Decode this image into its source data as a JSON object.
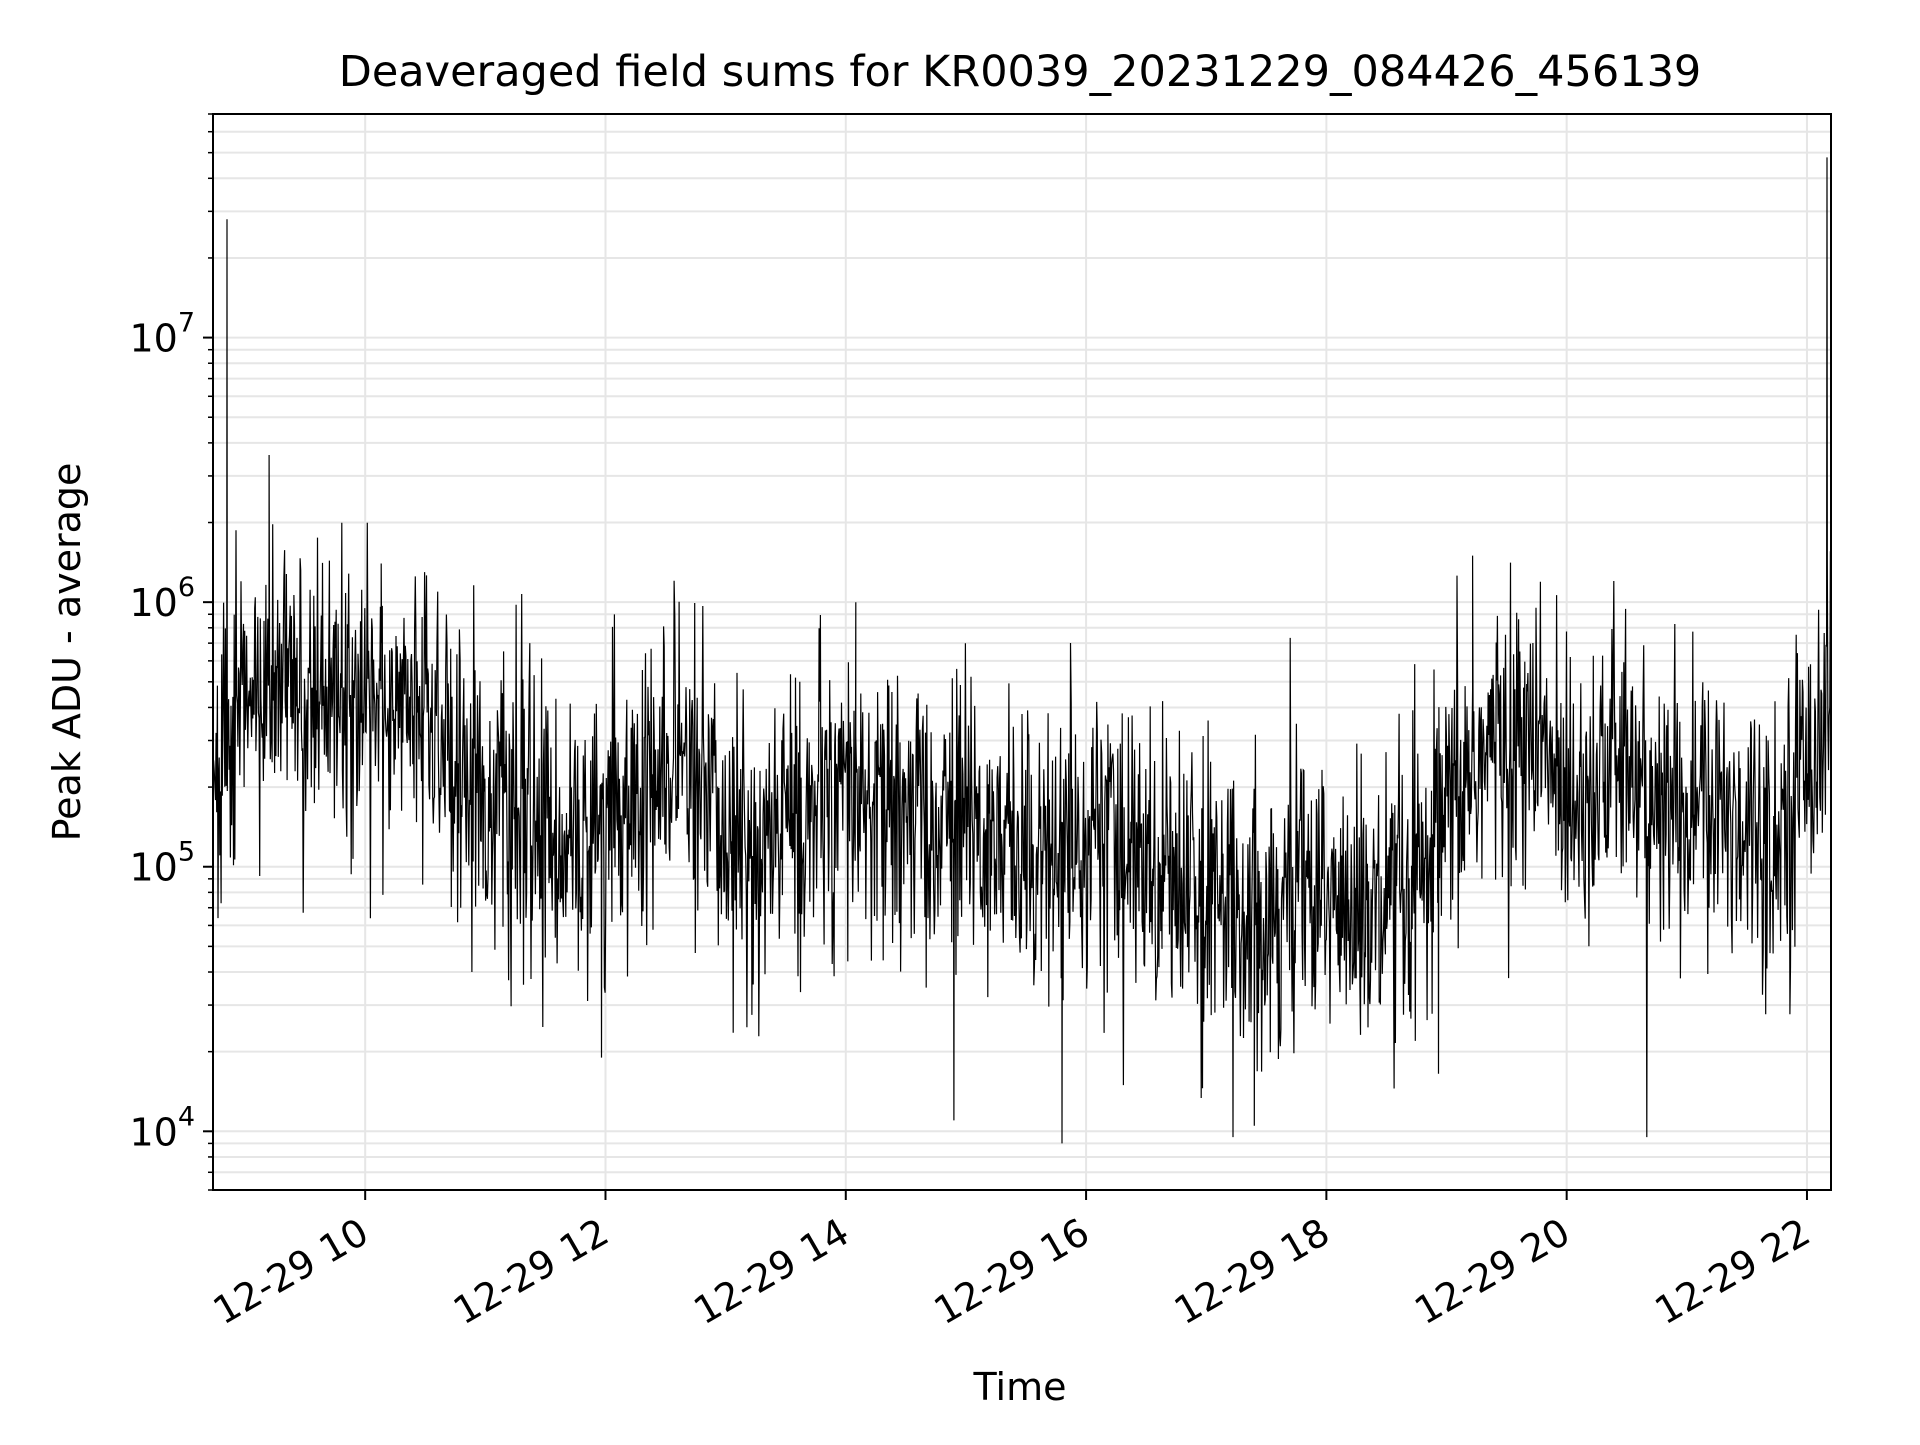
{
  "chart_data": {
    "type": "line",
    "title": "Deaveraged field sums for KR0039_20231229_084426_456139",
    "xlabel": "Time",
    "ylabel": "Peak ADU - average",
    "yscale": "log",
    "xlim": [
      "2023-12-29 08:44",
      "2023-12-29 22:12"
    ],
    "ylim": [
      6000,
      70000000
    ],
    "x_ticks": [
      {
        "value": "2023-12-29 10:00",
        "label": "12-29 10"
      },
      {
        "value": "2023-12-29 12:00",
        "label": "12-29 12"
      },
      {
        "value": "2023-12-29 14:00",
        "label": "12-29 14"
      },
      {
        "value": "2023-12-29 16:00",
        "label": "12-29 16"
      },
      {
        "value": "2023-12-29 18:00",
        "label": "12-29 18"
      },
      {
        "value": "2023-12-29 20:00",
        "label": "12-29 20"
      },
      {
        "value": "2023-12-29 22:00",
        "label": "12-29 22"
      }
    ],
    "y_ticks": [
      {
        "value": 10000,
        "base": "10",
        "exp": "4"
      },
      {
        "value": 100000,
        "base": "10",
        "exp": "5"
      },
      {
        "value": 1000000,
        "base": "10",
        "exp": "6"
      },
      {
        "value": 10000000,
        "base": "10",
        "exp": "7"
      }
    ],
    "grid": true,
    "line_color": "#000000",
    "series": [
      {
        "x": [
          "2023-12-29 08:44",
          "2023-12-29 08:50",
          "2023-12-29 09:00",
          "2023-12-29 09:15",
          "2023-12-29 09:30",
          "2023-12-29 09:45",
          "2023-12-29 10:00",
          "2023-12-29 10:15",
          "2023-12-29 10:30",
          "2023-12-29 10:45",
          "2023-12-29 11:00",
          "2023-12-29 11:15",
          "2023-12-29 11:30",
          "2023-12-29 11:45",
          "2023-12-29 12:00",
          "2023-12-29 12:15",
          "2023-12-29 12:30",
          "2023-12-29 12:45",
          "2023-12-29 13:00",
          "2023-12-29 13:15",
          "2023-12-29 13:30",
          "2023-12-29 13:45",
          "2023-12-29 14:00",
          "2023-12-29 14:15",
          "2023-12-29 14:30",
          "2023-12-29 14:45",
          "2023-12-29 15:00",
          "2023-12-29 15:15",
          "2023-12-29 15:30",
          "2023-12-29 15:45",
          "2023-12-29 16:00",
          "2023-12-29 16:15",
          "2023-12-29 16:30",
          "2023-12-29 16:45",
          "2023-12-29 17:00",
          "2023-12-29 17:15",
          "2023-12-29 17:30",
          "2023-12-29 17:45",
          "2023-12-29 18:00",
          "2023-12-29 18:15",
          "2023-12-29 18:30",
          "2023-12-29 18:45",
          "2023-12-29 19:00",
          "2023-12-29 19:15",
          "2023-12-29 19:30",
          "2023-12-29 19:45",
          "2023-12-29 20:00",
          "2023-12-29 20:15",
          "2023-12-29 20:30",
          "2023-12-29 20:45",
          "2023-12-29 21:00",
          "2023-12-29 21:15",
          "2023-12-29 21:30",
          "2023-12-29 21:45",
          "2023-12-29 22:00",
          "2023-12-29 22:12"
        ],
        "y": [
          300000,
          300000,
          380000,
          500000,
          450000,
          420000,
          400000,
          420000,
          380000,
          280000,
          180000,
          150000,
          140000,
          120000,
          150000,
          180000,
          200000,
          230000,
          130000,
          110000,
          150000,
          160000,
          180000,
          160000,
          150000,
          140000,
          150000,
          120000,
          130000,
          110000,
          140000,
          120000,
          110000,
          100000,
          80000,
          75000,
          70000,
          75000,
          80000,
          65000,
          60000,
          70000,
          150000,
          250000,
          300000,
          280000,
          200000,
          220000,
          250000,
          150000,
          180000,
          160000,
          150000,
          140000,
          250000,
          500000
        ]
      }
    ],
    "peaks": [
      {
        "x": "2023-12-29 08:51",
        "y": 28000000
      },
      {
        "x": "2023-12-29 09:12",
        "y": 3600000
      },
      {
        "x": "2023-12-29 10:08",
        "y": 1400000
      },
      {
        "x": "2023-12-29 14:05",
        "y": 1000000
      },
      {
        "x": "2023-12-29 19:13",
        "y": 1500000
      },
      {
        "x": "2023-12-29 22:10",
        "y": 48000000
      }
    ],
    "dips": [
      {
        "x": "2023-12-29 11:58",
        "y": 19000
      },
      {
        "x": "2023-12-29 14:54",
        "y": 11000
      },
      {
        "x": "2023-12-29 15:48",
        "y": 9000
      },
      {
        "x": "2023-12-29 17:24",
        "y": 10500
      },
      {
        "x": "2023-12-29 18:56",
        "y": 16500
      }
    ]
  }
}
